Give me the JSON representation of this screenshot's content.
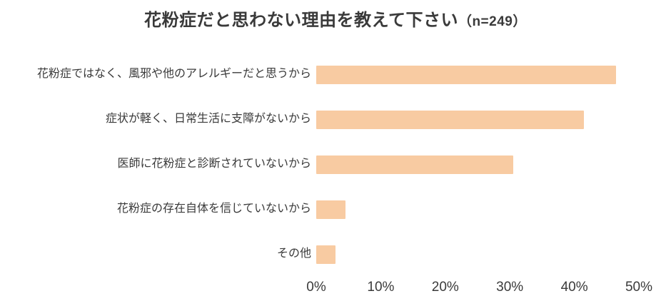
{
  "title": {
    "main": "花粉症だと思わない理由を教えて下さい",
    "suffix": "（n=249）"
  },
  "chart_data": {
    "type": "bar",
    "orientation": "horizontal",
    "title": "花粉症だと思わない理由を教えて下さい（n=249）",
    "sample_size": "n=249",
    "categories": [
      "花粉症ではなく、風邪や他のアレルギーだと思うから",
      "症状が軽く、日常生活に支障がないから",
      "医師に花粉症と診断されていないから",
      "花粉症の存在自体を信じていないから",
      "その他"
    ],
    "values": [
      46.5,
      41.5,
      30.5,
      4.5,
      3.0
    ],
    "unit": "%",
    "xlim": [
      0,
      50
    ],
    "x_ticks": [
      "0%",
      "10%",
      "20%",
      "30%",
      "40%",
      "50%"
    ],
    "xlabel": "",
    "ylabel": "",
    "grid": false,
    "legend": false,
    "bar_color": "#F8CBA2",
    "text_color": "#3a3a3a",
    "background_color": "#ffffff"
  }
}
